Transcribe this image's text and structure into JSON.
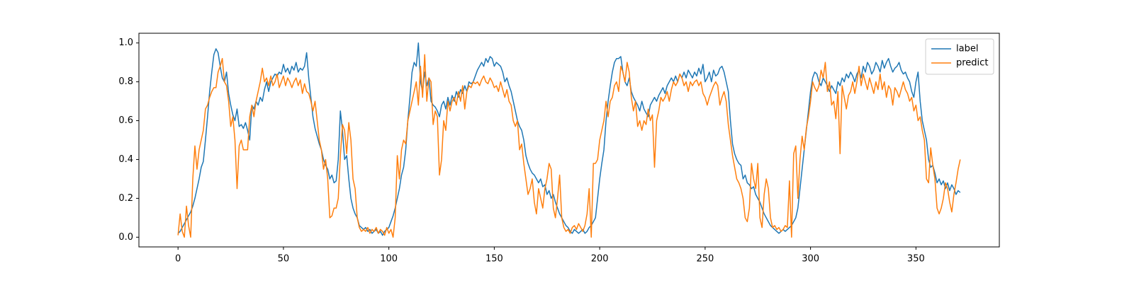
{
  "chart_data": {
    "type": "line",
    "x": [
      0,
      1,
      2,
      3,
      4,
      5,
      6,
      7,
      8,
      9,
      10,
      11,
      12,
      13,
      14,
      15,
      16,
      17,
      18,
      19,
      20,
      21,
      22,
      23,
      24,
      25,
      26,
      27,
      28,
      29,
      30,
      31,
      32,
      33,
      34,
      35,
      36,
      37,
      38,
      39,
      40,
      41,
      42,
      43,
      44,
      45,
      46,
      47,
      48,
      49,
      50,
      51,
      52,
      53,
      54,
      55,
      56,
      57,
      58,
      59,
      60,
      61,
      62,
      63,
      64,
      65,
      66,
      67,
      68,
      69,
      70,
      71,
      72,
      73,
      74,
      75,
      76,
      77,
      78,
      79,
      80,
      81,
      82,
      83,
      84,
      85,
      86,
      87,
      88,
      89,
      90,
      91,
      92,
      93,
      94,
      95,
      96,
      97,
      98,
      99,
      100,
      101,
      102,
      103,
      104,
      105,
      106,
      107,
      108,
      109,
      110,
      111,
      112,
      113,
      114,
      115,
      116,
      117,
      118,
      119,
      120,
      121,
      122,
      123,
      124,
      125,
      126,
      127,
      128,
      129,
      130,
      131,
      132,
      133,
      134,
      135,
      136,
      137,
      138,
      139,
      140,
      141,
      142,
      143,
      144,
      145,
      146,
      147,
      148,
      149,
      150,
      151,
      152,
      153,
      154,
      155,
      156,
      157,
      158,
      159,
      160,
      161,
      162,
      163,
      164,
      165,
      166,
      167,
      168,
      169,
      170,
      171,
      172,
      173,
      174,
      175,
      176,
      177,
      178,
      179,
      180,
      181,
      182,
      183,
      184,
      185,
      186,
      187,
      188,
      189,
      190,
      191,
      192,
      193,
      194,
      195,
      196,
      197,
      198,
      199,
      200,
      201,
      202,
      203,
      204,
      205,
      206,
      207,
      208,
      209,
      210,
      211,
      212,
      213,
      214,
      215,
      216,
      217,
      218,
      219,
      220,
      221,
      222,
      223,
      224,
      225,
      226,
      227,
      228,
      229,
      230,
      231,
      232,
      233,
      234,
      235,
      236,
      237,
      238,
      239,
      240,
      241,
      242,
      243,
      244,
      245,
      246,
      247,
      248,
      249,
      250,
      251,
      252,
      253,
      254,
      255,
      256,
      257,
      258,
      259,
      260,
      261,
      262,
      263,
      264,
      265,
      266,
      267,
      268,
      269,
      270,
      271,
      272,
      273,
      274,
      275,
      276,
      277,
      278,
      279,
      280,
      281,
      282,
      283,
      284,
      285,
      286,
      287,
      288,
      289,
      290,
      291,
      292,
      293,
      294,
      295,
      296,
      297,
      298,
      299,
      300,
      301,
      302,
      303,
      304,
      305,
      306,
      307,
      308,
      309,
      310,
      311,
      312,
      313,
      314,
      315,
      316,
      317,
      318,
      319,
      320,
      321,
      322,
      323,
      324,
      325,
      326,
      327,
      328,
      329,
      330,
      331,
      332,
      333,
      334,
      335,
      336,
      337,
      338,
      339,
      340,
      341,
      342,
      343,
      344,
      345,
      346,
      347,
      348,
      349,
      350,
      351,
      352,
      353,
      354,
      355,
      356,
      357,
      358,
      359,
      360,
      361,
      362,
      363,
      364,
      365,
      366,
      367,
      368,
      369,
      370,
      371
    ],
    "series": [
      {
        "name": "label",
        "color": "#1f77b4",
        "values": [
          0.02,
          0.03,
          0.05,
          0.07,
          0.09,
          0.11,
          0.13,
          0.16,
          0.2,
          0.25,
          0.3,
          0.36,
          0.39,
          0.5,
          0.62,
          0.75,
          0.85,
          0.94,
          0.97,
          0.95,
          0.88,
          0.82,
          0.8,
          0.85,
          0.74,
          0.68,
          0.63,
          0.6,
          0.66,
          0.57,
          0.58,
          0.56,
          0.59,
          0.55,
          0.5,
          0.68,
          0.66,
          0.7,
          0.68,
          0.72,
          0.7,
          0.76,
          0.8,
          0.75,
          0.8,
          0.82,
          0.84,
          0.83,
          0.85,
          0.84,
          0.89,
          0.85,
          0.87,
          0.84,
          0.88,
          0.86,
          0.9,
          0.85,
          0.87,
          0.86,
          0.88,
          0.95,
          0.82,
          0.72,
          0.62,
          0.56,
          0.52,
          0.48,
          0.45,
          0.4,
          0.37,
          0.35,
          0.3,
          0.32,
          0.28,
          0.29,
          0.4,
          0.65,
          0.55,
          0.4,
          0.42,
          0.3,
          0.2,
          0.15,
          0.12,
          0.1,
          0.06,
          0.05,
          0.04,
          0.05,
          0.03,
          0.04,
          0.02,
          0.03,
          0.04,
          0.02,
          0.03,
          0.01,
          0.03,
          0.04,
          0.05,
          0.08,
          0.11,
          0.15,
          0.2,
          0.25,
          0.32,
          0.36,
          0.45,
          0.6,
          0.72,
          0.85,
          0.9,
          0.88,
          1.0,
          0.8,
          0.75,
          0.85,
          0.78,
          0.82,
          0.7,
          0.68,
          0.67,
          0.65,
          0.62,
          0.68,
          0.7,
          0.66,
          0.72,
          0.68,
          0.73,
          0.7,
          0.75,
          0.72,
          0.76,
          0.74,
          0.78,
          0.75,
          0.8,
          0.79,
          0.8,
          0.83,
          0.86,
          0.88,
          0.9,
          0.88,
          0.92,
          0.9,
          0.93,
          0.92,
          0.88,
          0.9,
          0.89,
          0.88,
          0.85,
          0.8,
          0.82,
          0.78,
          0.75,
          0.7,
          0.65,
          0.6,
          0.57,
          0.55,
          0.5,
          0.42,
          0.38,
          0.35,
          0.33,
          0.32,
          0.3,
          0.28,
          0.3,
          0.26,
          0.27,
          0.22,
          0.24,
          0.2,
          0.22,
          0.18,
          0.15,
          0.12,
          0.1,
          0.08,
          0.06,
          0.05,
          0.03,
          0.02,
          0.04,
          0.03,
          0.02,
          0.03,
          0.04,
          0.02,
          0.03,
          0.05,
          0.06,
          0.08,
          0.1,
          0.2,
          0.3,
          0.38,
          0.45,
          0.6,
          0.7,
          0.78,
          0.85,
          0.9,
          0.92,
          0.92,
          0.93,
          0.85,
          0.8,
          0.78,
          0.82,
          0.75,
          0.72,
          0.7,
          0.68,
          0.65,
          0.7,
          0.66,
          0.64,
          0.62,
          0.68,
          0.7,
          0.72,
          0.7,
          0.73,
          0.75,
          0.77,
          0.74,
          0.78,
          0.8,
          0.82,
          0.8,
          0.83,
          0.8,
          0.84,
          0.82,
          0.85,
          0.82,
          0.86,
          0.84,
          0.82,
          0.85,
          0.83,
          0.87,
          0.84,
          0.89,
          0.8,
          0.82,
          0.85,
          0.8,
          0.86,
          0.83,
          0.84,
          0.87,
          0.88,
          0.85,
          0.8,
          0.75,
          0.6,
          0.48,
          0.43,
          0.4,
          0.38,
          0.37,
          0.3,
          0.32,
          0.28,
          0.27,
          0.25,
          0.26,
          0.22,
          0.2,
          0.18,
          0.15,
          0.12,
          0.1,
          0.08,
          0.06,
          0.05,
          0.04,
          0.03,
          0.02,
          0.03,
          0.04,
          0.03,
          0.04,
          0.05,
          0.06,
          0.08,
          0.1,
          0.15,
          0.25,
          0.35,
          0.45,
          0.55,
          0.65,
          0.75,
          0.82,
          0.85,
          0.84,
          0.8,
          0.78,
          0.82,
          0.8,
          0.78,
          0.75,
          0.78,
          0.76,
          0.74,
          0.8,
          0.78,
          0.82,
          0.8,
          0.84,
          0.82,
          0.85,
          0.83,
          0.8,
          0.84,
          0.86,
          0.82,
          0.88,
          0.85,
          0.9,
          0.88,
          0.84,
          0.86,
          0.9,
          0.88,
          0.85,
          0.91,
          0.87,
          0.9,
          0.92,
          0.88,
          0.85,
          0.87,
          0.88,
          0.9,
          0.86,
          0.84,
          0.85,
          0.82,
          0.8,
          0.75,
          0.72,
          0.8,
          0.85,
          0.7,
          0.6,
          0.55,
          0.5,
          0.4,
          0.36,
          0.37,
          0.33,
          0.28,
          0.3,
          0.27,
          0.29,
          0.25,
          0.28,
          0.24,
          0.27,
          0.25,
          0.22,
          0.24,
          0.23
        ]
      },
      {
        "name": "predict",
        "color": "#ff7f0e",
        "values": [
          0.01,
          0.12,
          0.03,
          0.0,
          0.16,
          0.06,
          0.0,
          0.3,
          0.47,
          0.35,
          0.45,
          0.5,
          0.55,
          0.66,
          0.68,
          0.72,
          0.75,
          0.77,
          0.77,
          0.85,
          0.88,
          0.92,
          0.8,
          0.78,
          0.7,
          0.57,
          0.62,
          0.5,
          0.25,
          0.47,
          0.5,
          0.45,
          0.45,
          0.45,
          0.62,
          0.68,
          0.62,
          0.7,
          0.75,
          0.8,
          0.87,
          0.8,
          0.82,
          0.78,
          0.83,
          0.78,
          0.8,
          0.84,
          0.77,
          0.8,
          0.83,
          0.78,
          0.82,
          0.8,
          0.77,
          0.8,
          0.82,
          0.78,
          0.81,
          0.74,
          0.79,
          0.75,
          0.74,
          0.7,
          0.65,
          0.7,
          0.6,
          0.5,
          0.45,
          0.35,
          0.4,
          0.3,
          0.1,
          0.11,
          0.15,
          0.15,
          0.2,
          0.42,
          0.58,
          0.55,
          0.43,
          0.59,
          0.5,
          0.3,
          0.25,
          0.1,
          0.05,
          0.03,
          0.04,
          0.03,
          0.05,
          0.02,
          0.04,
          0.03,
          0.05,
          0.02,
          0.04,
          0.03,
          0.01,
          0.05,
          0.02,
          0.04,
          0.0,
          0.1,
          0.42,
          0.3,
          0.45,
          0.5,
          0.48,
          0.6,
          0.65,
          0.7,
          0.75,
          0.8,
          0.68,
          0.88,
          0.72,
          0.94,
          0.7,
          0.82,
          0.8,
          0.58,
          0.65,
          0.62,
          0.32,
          0.4,
          0.6,
          0.55,
          0.7,
          0.65,
          0.7,
          0.72,
          0.68,
          0.75,
          0.7,
          0.78,
          0.66,
          0.75,
          0.78,
          0.77,
          0.8,
          0.79,
          0.8,
          0.78,
          0.81,
          0.83,
          0.8,
          0.79,
          0.82,
          0.8,
          0.77,
          0.78,
          0.75,
          0.8,
          0.76,
          0.72,
          0.76,
          0.7,
          0.68,
          0.6,
          0.57,
          0.6,
          0.45,
          0.48,
          0.38,
          0.3,
          0.22,
          0.25,
          0.3,
          0.18,
          0.12,
          0.25,
          0.2,
          0.15,
          0.25,
          0.3,
          0.38,
          0.35,
          0.15,
          0.1,
          0.2,
          0.32,
          0.1,
          0.05,
          0.03,
          0.04,
          0.02,
          0.05,
          0.06,
          0.04,
          0.07,
          0.05,
          0.03,
          0.06,
          0.12,
          0.25,
          0.0,
          0.38,
          0.38,
          0.4,
          0.5,
          0.55,
          0.6,
          0.7,
          0.62,
          0.7,
          0.72,
          0.78,
          0.8,
          0.75,
          0.88,
          0.85,
          0.8,
          0.9,
          0.85,
          0.72,
          0.65,
          0.7,
          0.57,
          0.6,
          0.55,
          0.6,
          0.58,
          0.66,
          0.6,
          0.63,
          0.36,
          0.6,
          0.65,
          0.72,
          0.7,
          0.72,
          0.75,
          0.7,
          0.76,
          0.8,
          0.78,
          0.8,
          0.84,
          0.82,
          0.78,
          0.8,
          0.75,
          0.8,
          0.78,
          0.8,
          0.81,
          0.78,
          0.8,
          0.74,
          0.72,
          0.68,
          0.72,
          0.75,
          0.78,
          0.8,
          0.78,
          0.68,
          0.72,
          0.75,
          0.7,
          0.58,
          0.5,
          0.42,
          0.36,
          0.3,
          0.28,
          0.25,
          0.2,
          0.1,
          0.08,
          0.15,
          0.38,
          0.3,
          0.25,
          0.38,
          0.1,
          0.05,
          0.22,
          0.3,
          0.25,
          0.1,
          0.05,
          0.06,
          0.04,
          0.05,
          0.03,
          0.04,
          0.06,
          0.05,
          0.29,
          0.0,
          0.43,
          0.47,
          0.2,
          0.4,
          0.52,
          0.45,
          0.56,
          0.62,
          0.7,
          0.8,
          0.77,
          0.75,
          0.78,
          0.86,
          0.82,
          0.9,
          0.75,
          0.8,
          0.68,
          0.7,
          0.61,
          0.75,
          0.43,
          0.78,
          0.72,
          0.66,
          0.73,
          0.75,
          0.8,
          0.74,
          0.8,
          0.88,
          0.78,
          0.84,
          0.8,
          0.76,
          0.82,
          0.78,
          0.74,
          0.8,
          0.76,
          0.84,
          0.76,
          0.8,
          0.72,
          0.78,
          0.76,
          0.68,
          0.77,
          0.75,
          0.72,
          0.76,
          0.8,
          0.76,
          0.74,
          0.7,
          0.72,
          0.65,
          0.68,
          0.6,
          0.62,
          0.55,
          0.5,
          0.3,
          0.28,
          0.46,
          0.37,
          0.3,
          0.15,
          0.12,
          0.15,
          0.2,
          0.28,
          0.25,
          0.18,
          0.13,
          0.22,
          0.28,
          0.35,
          0.4
        ]
      }
    ],
    "xlim": [
      -18.55,
      389.55
    ],
    "xticks": [
      0,
      50,
      100,
      150,
      200,
      250,
      300,
      350
    ],
    "ylim": [
      -0.05,
      1.05
    ],
    "yticks": [
      {
        "value": 0,
        "label": "0.0"
      },
      0.2,
      0.4,
      0.6,
      0.8,
      {
        "value": 1,
        "label": "1.0"
      }
    ],
    "legend": "upper right",
    "grid": false
  }
}
